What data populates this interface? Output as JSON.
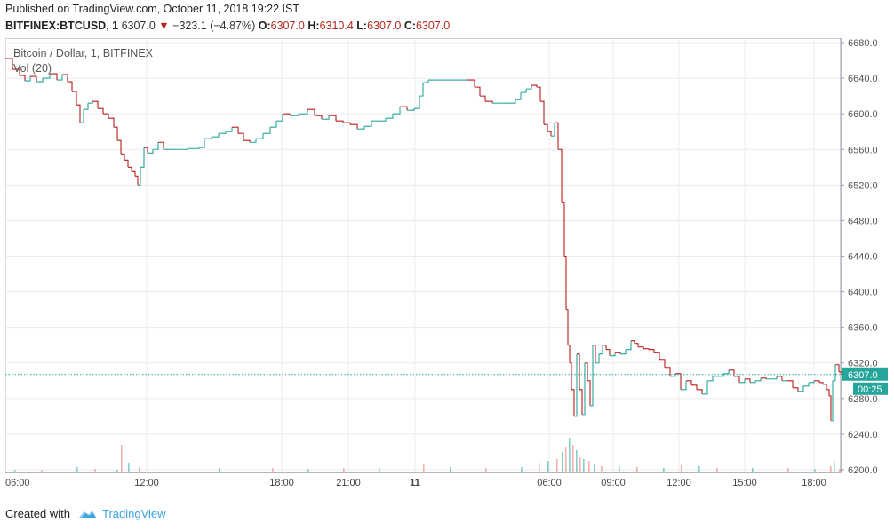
{
  "header": {
    "published": "Published on TradingView.com, October 11, 2018 19:22 IST"
  },
  "legend": {
    "symbol": "BITFINEX:BTCUSD, 1",
    "last": "6307.0",
    "arrow": "▼",
    "change": "−323.1 (−4.87%)",
    "o_key": "O:",
    "o": "6307.0",
    "h_key": "H:",
    "h": "6310.4",
    "l_key": "L:",
    "l": "6307.0",
    "c_key": "C:",
    "c": "6307.0"
  },
  "chart_labels": {
    "title": "Bitcoin / Dollar, 1, BITFINEX",
    "volume": "Vol (20)"
  },
  "footer": {
    "created_with": "Created with",
    "brand": "TradingView"
  },
  "colors": {
    "up": "#26a69a",
    "down": "#b71c1c",
    "grid": "#e9ecf1",
    "price_tag": "#26a69a"
  },
  "chart_data": {
    "type": "line",
    "x_tick_labels": [
      "06:00",
      "12:00",
      "18:00",
      "21:00",
      "11",
      "06:00",
      "09:00",
      "12:00",
      "15:00",
      "18:00"
    ],
    "y_tick_labels": [
      "6680.0",
      "6640.0",
      "6600.0",
      "6560.0",
      "6520.0",
      "6480.0",
      "6440.0",
      "6400.0",
      "6360.0",
      "6320.0",
      "6280.0",
      "6240.0",
      "6200.0"
    ],
    "y_ticks": [
      6680,
      6640,
      6600,
      6560,
      6520,
      6480,
      6440,
      6400,
      6360,
      6320,
      6280,
      6240,
      6200
    ],
    "ylim": [
      6197,
      6685
    ],
    "last_price_label": "6307.0",
    "last_price": 6307.0,
    "countdown": "00:25",
    "grid": true,
    "price_points": [
      [
        0,
        6662
      ],
      [
        8,
        6650
      ],
      [
        16,
        6643
      ],
      [
        22,
        6637
      ],
      [
        28,
        6642
      ],
      [
        35,
        6636
      ],
      [
        42,
        6640
      ],
      [
        50,
        6645
      ],
      [
        58,
        6638
      ],
      [
        64,
        6644
      ],
      [
        70,
        6636
      ],
      [
        75,
        6625
      ],
      [
        80,
        6610
      ],
      [
        84,
        6590
      ],
      [
        88,
        6605
      ],
      [
        93,
        6612
      ],
      [
        98,
        6614
      ],
      [
        104,
        6606
      ],
      [
        110,
        6600
      ],
      [
        116,
        6595
      ],
      [
        122,
        6585
      ],
      [
        126,
        6570
      ],
      [
        130,
        6555
      ],
      [
        134,
        6548
      ],
      [
        138,
        6540
      ],
      [
        142,
        6535
      ],
      [
        146,
        6530
      ],
      [
        149,
        6520
      ],
      [
        152,
        6540
      ],
      [
        156,
        6562
      ],
      [
        160,
        6556
      ],
      [
        166,
        6560
      ],
      [
        172,
        6568
      ],
      [
        178,
        6560
      ],
      [
        190,
        6560
      ],
      [
        205,
        6561
      ],
      [
        218,
        6562
      ],
      [
        224,
        6572
      ],
      [
        232,
        6574
      ],
      [
        240,
        6578
      ],
      [
        248,
        6580
      ],
      [
        255,
        6585
      ],
      [
        262,
        6578
      ],
      [
        268,
        6570
      ],
      [
        275,
        6568
      ],
      [
        282,
        6572
      ],
      [
        290,
        6578
      ],
      [
        298,
        6585
      ],
      [
        305,
        6592
      ],
      [
        312,
        6600
      ],
      [
        320,
        6598
      ],
      [
        330,
        6600
      ],
      [
        340,
        6605
      ],
      [
        348,
        6598
      ],
      [
        356,
        6594
      ],
      [
        364,
        6598
      ],
      [
        372,
        6592
      ],
      [
        380,
        6590
      ],
      [
        388,
        6588
      ],
      [
        396,
        6583
      ],
      [
        404,
        6586
      ],
      [
        412,
        6592
      ],
      [
        420,
        6592
      ],
      [
        428,
        6595
      ],
      [
        436,
        6600
      ],
      [
        444,
        6608
      ],
      [
        452,
        6604
      ],
      [
        460,
        6606
      ],
      [
        466,
        6620
      ],
      [
        470,
        6635
      ],
      [
        476,
        6638
      ],
      [
        490,
        6638
      ],
      [
        505,
        6638
      ],
      [
        520,
        6638
      ],
      [
        528,
        6630
      ],
      [
        534,
        6620
      ],
      [
        540,
        6614
      ],
      [
        548,
        6612
      ],
      [
        556,
        6612
      ],
      [
        566,
        6612
      ],
      [
        574,
        6616
      ],
      [
        580,
        6624
      ],
      [
        586,
        6628
      ],
      [
        592,
        6632
      ],
      [
        598,
        6630
      ],
      [
        602,
        6614
      ],
      [
        606,
        6588
      ],
      [
        610,
        6580
      ],
      [
        614,
        6575
      ],
      [
        618,
        6590
      ],
      [
        622,
        6560
      ],
      [
        626,
        6500
      ],
      [
        629,
        6440
      ],
      [
        631,
        6380
      ],
      [
        633,
        6340
      ],
      [
        635,
        6320
      ],
      [
        637,
        6290
      ],
      [
        640,
        6260
      ],
      [
        643,
        6330
      ],
      [
        646,
        6290
      ],
      [
        649,
        6262
      ],
      [
        652,
        6320
      ],
      [
        655,
        6300
      ],
      [
        658,
        6272
      ],
      [
        661,
        6340
      ],
      [
        664,
        6320
      ],
      [
        668,
        6330
      ],
      [
        672,
        6340
      ],
      [
        676,
        6335
      ],
      [
        680,
        6328
      ],
      [
        686,
        6332
      ],
      [
        692,
        6330
      ],
      [
        698,
        6335
      ],
      [
        704,
        6345
      ],
      [
        708,
        6342
      ],
      [
        712,
        6338
      ],
      [
        718,
        6336
      ],
      [
        724,
        6335
      ],
      [
        730,
        6332
      ],
      [
        736,
        6324
      ],
      [
        742,
        6315
      ],
      [
        748,
        6305
      ],
      [
        754,
        6308
      ],
      [
        760,
        6290
      ],
      [
        766,
        6300
      ],
      [
        772,
        6295
      ],
      [
        778,
        6290
      ],
      [
        784,
        6285
      ],
      [
        790,
        6300
      ],
      [
        796,
        6305
      ],
      [
        802,
        6305
      ],
      [
        808,
        6308
      ],
      [
        814,
        6312
      ],
      [
        820,
        6305
      ],
      [
        826,
        6298
      ],
      [
        832,
        6302
      ],
      [
        838,
        6298
      ],
      [
        844,
        6300
      ],
      [
        850,
        6303
      ],
      [
        856,
        6302
      ],
      [
        862,
        6302
      ],
      [
        868,
        6305
      ],
      [
        874,
        6300
      ],
      [
        880,
        6300
      ],
      [
        886,
        6292
      ],
      [
        892,
        6288
      ],
      [
        898,
        6294
      ],
      [
        904,
        6298
      ],
      [
        910,
        6300
      ],
      [
        916,
        6298
      ],
      [
        920,
        6296
      ],
      [
        924,
        6290
      ],
      [
        927,
        6283
      ],
      [
        929,
        6255
      ],
      [
        931,
        6300
      ],
      [
        934,
        6318
      ],
      [
        938,
        6310
      ],
      [
        941,
        6307
      ]
    ],
    "volume_points": [
      [
        10,
        2
      ],
      [
        40,
        2
      ],
      [
        80,
        5
      ],
      [
        100,
        3
      ],
      [
        125,
        2
      ],
      [
        130,
        30
      ],
      [
        138,
        10
      ],
      [
        150,
        5
      ],
      [
        240,
        4
      ],
      [
        300,
        4
      ],
      [
        340,
        3
      ],
      [
        380,
        4
      ],
      [
        420,
        4
      ],
      [
        470,
        8
      ],
      [
        500,
        5
      ],
      [
        540,
        4
      ],
      [
        580,
        5
      ],
      [
        600,
        10
      ],
      [
        610,
        12
      ],
      [
        620,
        14
      ],
      [
        626,
        22
      ],
      [
        630,
        28
      ],
      [
        634,
        38
      ],
      [
        638,
        30
      ],
      [
        642,
        24
      ],
      [
        646,
        16
      ],
      [
        650,
        14
      ],
      [
        656,
        12
      ],
      [
        662,
        8
      ],
      [
        670,
        6
      ],
      [
        690,
        6
      ],
      [
        710,
        5
      ],
      [
        740,
        4
      ],
      [
        760,
        7
      ],
      [
        780,
        6
      ],
      [
        800,
        4
      ],
      [
        840,
        4
      ],
      [
        880,
        4
      ],
      [
        910,
        3
      ],
      [
        928,
        6
      ],
      [
        932,
        12
      ],
      [
        938,
        3
      ]
    ]
  }
}
